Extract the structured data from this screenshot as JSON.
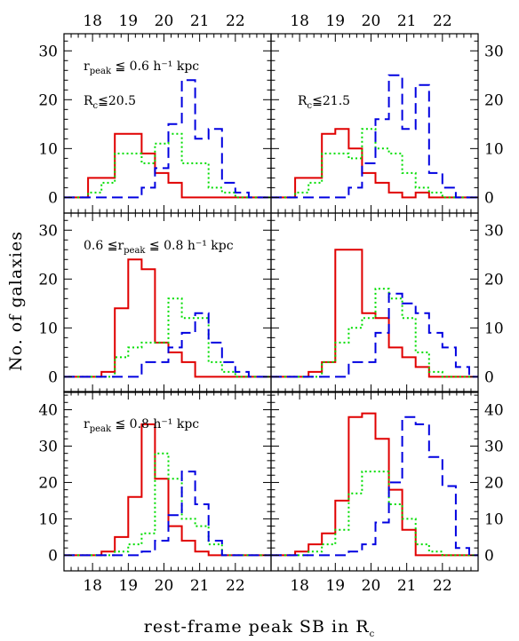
{
  "figure": {
    "xlabel": "rest-frame peak SB in R",
    "xlabel_sub": "c",
    "ylabel": "No. of galaxies"
  },
  "chart_data": {
    "type": "step",
    "xlim": [
      17.2,
      23.0
    ],
    "bin_edges": [
      17.5,
      17.875,
      18.25,
      18.625,
      19.0,
      19.375,
      19.75,
      20.125,
      20.5,
      20.875,
      21.25,
      21.625,
      22.0,
      22.375,
      22.75
    ],
    "x_ticks": [
      "18",
      "19",
      "20",
      "21",
      "22"
    ],
    "x_tick_values": [
      18,
      19,
      20,
      21,
      22
    ],
    "columns": [
      {
        "label": "R",
        "label_sub": "c",
        "label_rest": "≦20.5"
      },
      {
        "label": "R",
        "label_sub": "c",
        "label_rest": "≦21.5"
      }
    ],
    "rows": [
      {
        "label": "r",
        "label_sub": "peak",
        "label_rest": " ≦ 0.6 h⁻¹ kpc",
        "ylim": [
          -3.2,
          33.5
        ],
        "y_ticks": [
          "0",
          "10",
          "20",
          "30"
        ],
        "y_tick_values": [
          0,
          10,
          20,
          30
        ]
      },
      {
        "label": "0.6 ≦r",
        "label_sub": "peak",
        "label_rest": " ≦ 0.8 h⁻¹ kpc",
        "ylim": [
          -3.2,
          33.5
        ],
        "y_ticks": [
          "0",
          "10",
          "20",
          "30"
        ],
        "y_tick_values": [
          0,
          10,
          20,
          30
        ]
      },
      {
        "label": "r",
        "label_sub": "peak",
        "label_rest": " ≦ 0.8 h⁻¹ kpc",
        "ylim": [
          -4.3,
          45
        ],
        "y_ticks": [
          "0",
          "10",
          "20",
          "30",
          "40"
        ],
        "y_tick_values": [
          0,
          10,
          20,
          30,
          40
        ]
      }
    ],
    "series_style": [
      {
        "color": "#e00000",
        "dash": "none"
      },
      {
        "color": "#00dd00",
        "dash": "2,3"
      },
      {
        "color": "#0000e0",
        "dash": "12,6"
      }
    ],
    "panels": [
      {
        "row": 0,
        "col": 0,
        "series": [
          {
            "values": [
              0,
              4,
              4,
              13,
              13,
              9,
              5,
              3,
              0,
              0,
              0,
              0,
              0,
              0
            ]
          },
          {
            "values": [
              0,
              1,
              3,
              9,
              9,
              7,
              11,
              13,
              7,
              7,
              2,
              1,
              0,
              0
            ]
          },
          {
            "values": [
              0,
              0,
              0,
              0,
              0,
              2,
              6,
              15,
              24,
              12,
              14,
              3,
              1,
              0
            ]
          }
        ]
      },
      {
        "row": 0,
        "col": 1,
        "series": [
          {
            "values": [
              0,
              4,
              4,
              13,
              14,
              10,
              5,
              3,
              1,
              0,
              1,
              0,
              0,
              0
            ]
          },
          {
            "values": [
              0,
              1,
              3,
              9,
              9,
              8,
              14,
              10,
              9,
              5,
              2,
              1,
              0,
              0
            ]
          },
          {
            "values": [
              0,
              0,
              0,
              0,
              0,
              2,
              7,
              16,
              25,
              14,
              23,
              5,
              2,
              0
            ]
          }
        ]
      },
      {
        "row": 1,
        "col": 0,
        "series": [
          {
            "values": [
              0,
              0,
              1,
              14,
              24,
              22,
              7,
              5,
              3,
              0,
              0,
              0,
              0,
              0
            ]
          },
          {
            "values": [
              0,
              0,
              0,
              4,
              6,
              7,
              7,
              16,
              12,
              12,
              3,
              1,
              0,
              0
            ]
          },
          {
            "values": [
              0,
              0,
              0,
              0,
              0,
              3,
              3,
              6,
              9,
              13,
              7,
              3,
              1,
              0
            ]
          }
        ]
      },
      {
        "row": 1,
        "col": 1,
        "series": [
          {
            "values": [
              0,
              0,
              1,
              3,
              26,
              26,
              13,
              12,
              6,
              4,
              2,
              0,
              0,
              0
            ]
          },
          {
            "values": [
              0,
              0,
              0,
              3,
              7,
              10,
              12,
              18,
              16,
              12,
              5,
              1,
              0,
              0
            ]
          },
          {
            "values": [
              0,
              0,
              0,
              0,
              0,
              3,
              3,
              9,
              17,
              15,
              13,
              9,
              6,
              2
            ]
          }
        ]
      },
      {
        "row": 2,
        "col": 0,
        "series": [
          {
            "values": [
              0,
              0,
              1,
              5,
              16,
              36,
              21,
              8,
              4,
              1,
              0,
              0,
              0,
              0
            ]
          },
          {
            "values": [
              0,
              0,
              0,
              1,
              3,
              6,
              28,
              21,
              10,
              8,
              3,
              0,
              0,
              0
            ]
          },
          {
            "values": [
              0,
              0,
              0,
              0,
              0,
              1,
              4,
              11,
              23,
              14,
              4,
              0,
              0,
              0
            ]
          }
        ]
      },
      {
        "row": 2,
        "col": 1,
        "series": [
          {
            "values": [
              0,
              1,
              3,
              6,
              15,
              38,
              39,
              32,
              18,
              7,
              0,
              0,
              0,
              0
            ]
          },
          {
            "values": [
              0,
              0,
              1,
              3,
              7,
              17,
              23,
              23,
              14,
              10,
              3,
              1,
              0,
              0
            ]
          },
          {
            "values": [
              0,
              0,
              0,
              0,
              0,
              1,
              3,
              9,
              20,
              38,
              36,
              27,
              19,
              2
            ]
          }
        ]
      }
    ]
  }
}
